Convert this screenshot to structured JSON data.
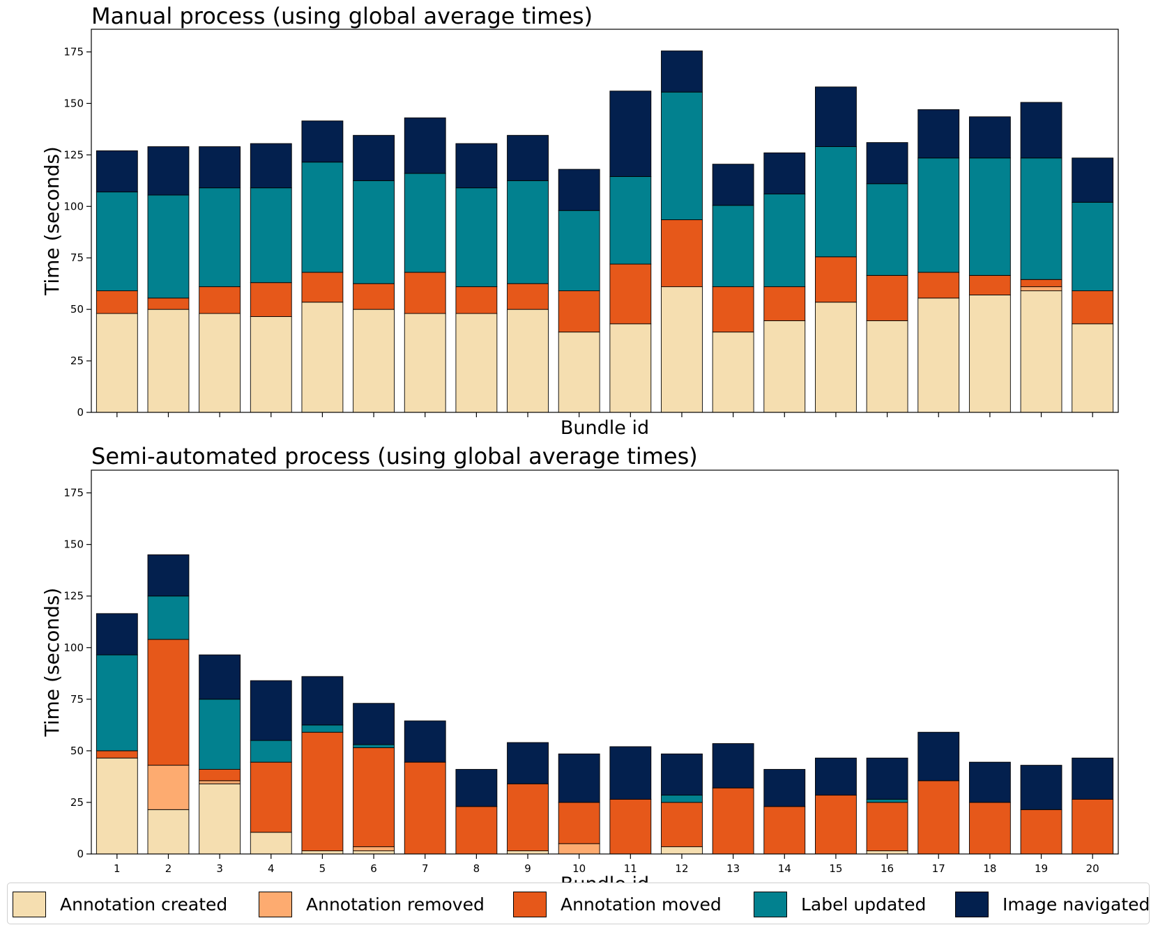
{
  "chart_data": [
    {
      "type": "bar",
      "stacked": true,
      "title": "Manual process (using global average times)",
      "xlabel": "Bundle id",
      "ylabel": "Time (seconds)",
      "ylim": [
        0,
        186
      ],
      "yticks": [
        "0",
        "25",
        "50",
        "75",
        "100",
        "125",
        "150",
        "175"
      ],
      "show_xtick_labels": false,
      "categories": [
        "1",
        "2",
        "3",
        "4",
        "5",
        "6",
        "7",
        "8",
        "9",
        "10",
        "11",
        "12",
        "13",
        "14",
        "15",
        "16",
        "17",
        "18",
        "19",
        "20"
      ],
      "series": [
        {
          "name": "Annotation created",
          "color": "#f5deb0",
          "values": [
            48,
            50,
            48,
            46.5,
            53.5,
            50,
            48,
            48,
            50,
            39,
            43,
            61,
            39,
            44.5,
            53.5,
            44.5,
            55.5,
            57,
            59,
            43
          ]
        },
        {
          "name": "Annotation removed",
          "color": "#fdab70",
          "values": [
            0,
            0,
            0,
            0,
            0,
            0,
            0,
            0,
            0,
            0,
            0,
            0,
            0,
            0,
            0,
            0,
            0,
            0,
            2,
            0
          ]
        },
        {
          "name": "Annotation moved",
          "color": "#e6581a",
          "values": [
            11,
            5.5,
            13,
            16.5,
            14.5,
            12.5,
            20,
            13,
            12.5,
            20,
            29,
            32.5,
            22,
            16.5,
            22,
            22,
            12.5,
            9.5,
            3.5,
            16
          ]
        },
        {
          "name": "Label updated",
          "color": "#02818f",
          "values": [
            48,
            50,
            48,
            46,
            53.5,
            50,
            48,
            48,
            50,
            39,
            42.5,
            62,
            39.5,
            45,
            53.5,
            44.5,
            55.5,
            57,
            59,
            43
          ]
        },
        {
          "name": "Image navigated",
          "color": "#03204e",
          "values": [
            20,
            23.5,
            20,
            21.5,
            20,
            22,
            27,
            21.5,
            22,
            20,
            41.5,
            20,
            20,
            20,
            29,
            20,
            23.5,
            20,
            27,
            21.5
          ]
        }
      ]
    },
    {
      "type": "bar",
      "stacked": true,
      "title": "Semi-automated process (using global average times)",
      "xlabel": "Bundle id",
      "ylabel": "Time (seconds)",
      "ylim": [
        0,
        186
      ],
      "yticks": [
        "0",
        "25",
        "50",
        "75",
        "100",
        "125",
        "150",
        "175"
      ],
      "show_xtick_labels": true,
      "categories": [
        "1",
        "2",
        "3",
        "4",
        "5",
        "6",
        "7",
        "8",
        "9",
        "10",
        "11",
        "12",
        "13",
        "14",
        "15",
        "16",
        "17",
        "18",
        "19",
        "20"
      ],
      "series": [
        {
          "name": "Annotation created",
          "color": "#f5deb0",
          "values": [
            46.5,
            21.5,
            34,
            10.5,
            1.5,
            1.5,
            0,
            0,
            1.5,
            0,
            0,
            3.5,
            0,
            0,
            0,
            1.5,
            0,
            0,
            0,
            0
          ]
        },
        {
          "name": "Annotation removed",
          "color": "#fdab70",
          "values": [
            0,
            21.5,
            1.5,
            0,
            0,
            2,
            0,
            0,
            0,
            5,
            0,
            0,
            0,
            0,
            0,
            0,
            0,
            0,
            0,
            0
          ]
        },
        {
          "name": "Annotation moved",
          "color": "#e6581a",
          "values": [
            3.5,
            61,
            5.5,
            34,
            57.5,
            48,
            44.5,
            23,
            32.5,
            20,
            26.5,
            21.5,
            32,
            23,
            28.5,
            23.5,
            35.5,
            25,
            21.5,
            26.5
          ]
        },
        {
          "name": "Label updated",
          "color": "#02818f",
          "values": [
            46.5,
            21,
            34,
            10.5,
            3.5,
            1.5,
            0,
            0,
            0,
            0,
            0,
            3.5,
            0,
            0,
            0,
            1.5,
            0,
            0,
            0,
            0
          ]
        },
        {
          "name": "Image navigated",
          "color": "#03204e",
          "values": [
            20,
            20,
            21.5,
            29,
            23.5,
            20,
            20,
            18,
            20,
            23.5,
            25.5,
            20,
            21.5,
            18,
            18,
            20,
            23.5,
            19.5,
            21.5,
            20
          ]
        }
      ]
    }
  ],
  "legend": {
    "items": [
      {
        "label": "Annotation created",
        "color": "#f5deb0"
      },
      {
        "label": "Annotation removed",
        "color": "#fdab70"
      },
      {
        "label": "Annotation moved",
        "color": "#e6581a"
      },
      {
        "label": "Label updated",
        "color": "#02818f"
      },
      {
        "label": "Image navigated",
        "color": "#03204e"
      }
    ]
  }
}
